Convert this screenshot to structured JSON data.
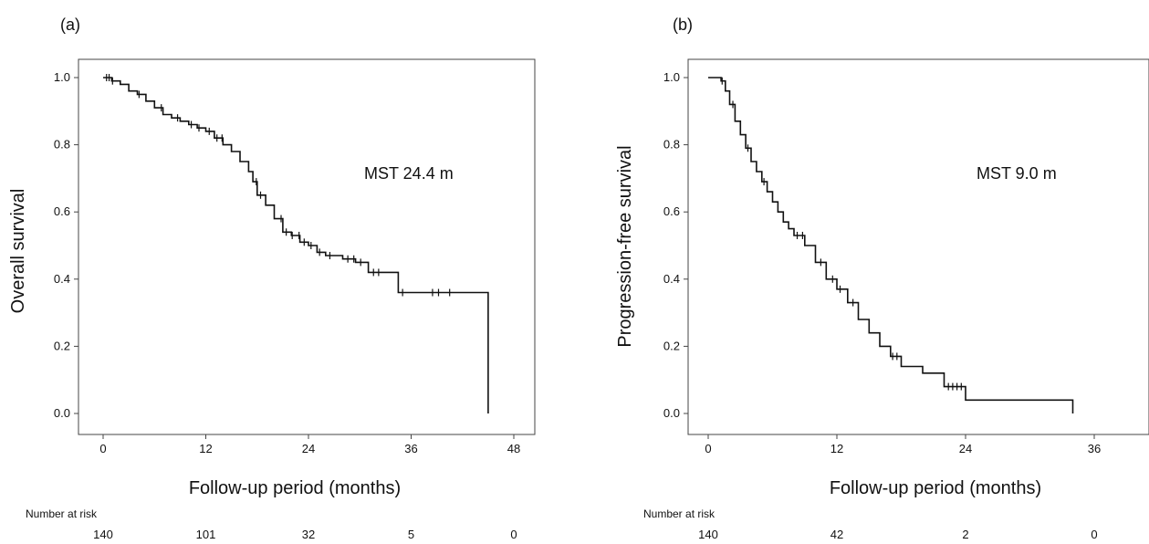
{
  "chart_data": [
    {
      "type": "line",
      "panel_label": "(a)",
      "title": "",
      "xlabel": "Follow-up period (months)",
      "ylabel": "Overall survival",
      "xlim": [
        0,
        48
      ],
      "ylim": [
        0.0,
        1.0
      ],
      "xticks": [
        0,
        12,
        24,
        36,
        48
      ],
      "xtick_labels": [
        "0",
        "12",
        "24",
        "36",
        "48"
      ],
      "yticks": [
        0.0,
        0.2,
        0.4,
        0.6,
        0.8,
        1.0
      ],
      "ytick_labels": [
        "0.0",
        "0.2",
        "0.4",
        "0.6",
        "0.8",
        "1.0"
      ],
      "grid": false,
      "legend": "none",
      "annotation": "MST 24.4 m",
      "series": [
        {
          "x": [
            0,
            1,
            2,
            3,
            4,
            5,
            6,
            7,
            8,
            9,
            10,
            11,
            12,
            13,
            14,
            15,
            16,
            17,
            17.5,
            18,
            19,
            20,
            21,
            22,
            23,
            24,
            25,
            26,
            28,
            29.5,
            31,
            34.5,
            45
          ],
          "y": [
            1.0,
            0.99,
            0.98,
            0.96,
            0.95,
            0.93,
            0.91,
            0.89,
            0.88,
            0.87,
            0.86,
            0.85,
            0.84,
            0.82,
            0.8,
            0.78,
            0.75,
            0.72,
            0.69,
            0.65,
            0.62,
            0.58,
            0.54,
            0.53,
            0.51,
            0.5,
            0.48,
            0.47,
            0.46,
            0.45,
            0.42,
            0.36,
            0.0
          ]
        }
      ],
      "censor_x": [
        0.4,
        0.7,
        1.1,
        4.2,
        6.8,
        8.7,
        10.3,
        11.2,
        12.4,
        13.3,
        13.9,
        17.9,
        18.4,
        20.8,
        21.4,
        22.1,
        22.9,
        23.5,
        24.3,
        25.3,
        26.5,
        28.6,
        29.3,
        30.1,
        31.6,
        32.2,
        35.0,
        38.5,
        39.2,
        40.5
      ],
      "risk_label": "Number at risk",
      "risk_counts": [
        "140",
        "101",
        "32",
        "5",
        "0"
      ]
    },
    {
      "type": "line",
      "panel_label": "(b)",
      "title": "",
      "xlabel": "Follow-up period (months)",
      "ylabel": "Progression-free survival",
      "xlim": [
        0,
        36
      ],
      "ylim": [
        0.0,
        1.0
      ],
      "xticks": [
        0,
        12,
        24,
        36
      ],
      "xtick_labels": [
        "0",
        "12",
        "24",
        "36"
      ],
      "yticks": [
        0.0,
        0.2,
        0.4,
        0.6,
        0.8,
        1.0
      ],
      "ytick_labels": [
        "0.0",
        "0.2",
        "0.4",
        "0.6",
        "0.8",
        "1.0"
      ],
      "grid": false,
      "legend": "none",
      "annotation": "MST 9.0 m",
      "series": [
        {
          "x": [
            0,
            1.2,
            1.6,
            2,
            2.5,
            3,
            3.5,
            4,
            4.5,
            5,
            5.5,
            6,
            6.5,
            7,
            7.5,
            8,
            9,
            10,
            11,
            12,
            13,
            14,
            15,
            16,
            17,
            18,
            20,
            22,
            24,
            34
          ],
          "y": [
            1.0,
            0.99,
            0.96,
            0.92,
            0.87,
            0.83,
            0.79,
            0.75,
            0.72,
            0.69,
            0.66,
            0.63,
            0.6,
            0.57,
            0.55,
            0.53,
            0.5,
            0.45,
            0.4,
            0.37,
            0.33,
            0.28,
            0.24,
            0.2,
            0.17,
            0.14,
            0.12,
            0.08,
            0.04,
            0.0
          ]
        }
      ],
      "censor_x": [
        1.3,
        2.3,
        3.7,
        5.2,
        8.3,
        8.8,
        10.5,
        11.6,
        12.3,
        13.5,
        17.2,
        17.6,
        22.4,
        22.8,
        23.2,
        23.6
      ],
      "risk_label": "Number at risk",
      "risk_counts": [
        "140",
        "42",
        "2",
        "0"
      ]
    }
  ]
}
